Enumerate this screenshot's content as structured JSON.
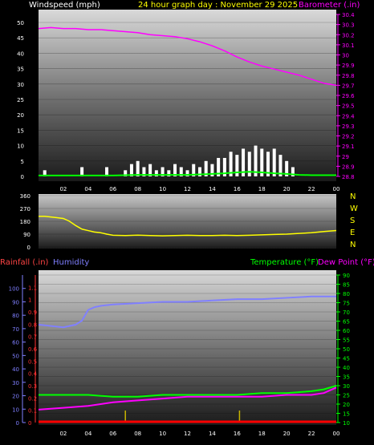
{
  "header": {
    "left_label": "Windspeed (mph)",
    "center_label": "24 hour graph day : November 29 2025",
    "right_label": "Barometer (.in)"
  },
  "colors": {
    "background": "#000000",
    "windspeed_text": "#ffffff",
    "header_center": "#ffff00",
    "barometer": "#ff00ff",
    "wind_gust": "#ffffff",
    "wind_avg": "#00ff00",
    "direction": "#ffff00",
    "humidity": "#7f7fff",
    "temperature": "#00ff00",
    "dew_point": "#ff00ff",
    "rainfall": "#ff0000",
    "rain_marks": "#c8b400"
  },
  "chart_data": [
    {
      "type": "line",
      "name": "wind-and-barometer",
      "x_tick_labels": [
        "02",
        "04",
        "06",
        "08",
        "10",
        "12",
        "14",
        "16",
        "18",
        "20",
        "22",
        "00"
      ],
      "x_range_hours": [
        0,
        24
      ],
      "left_axis": {
        "label": "Windspeed (mph)",
        "range": [
          0,
          50
        ],
        "ticks": [
          "0",
          "5",
          "10",
          "15",
          "20",
          "25",
          "30",
          "35",
          "40",
          "45",
          "50"
        ]
      },
      "right_axis": {
        "label": "Barometer (.in)",
        "range": [
          28.8,
          30.4
        ],
        "ticks": [
          "28.8",
          "28.9",
          "29",
          "29.1",
          "29.2",
          "29.3",
          "29.4",
          "29.5",
          "29.6",
          "29.7",
          "29.8",
          "29.9",
          "30",
          "30.1",
          "30.2",
          "30.3",
          "30.4"
        ]
      },
      "barometer": {
        "x": [
          0,
          1,
          2,
          3,
          4,
          5,
          6,
          7,
          8,
          9,
          10,
          11,
          12,
          13,
          14,
          15,
          16,
          17,
          18,
          19,
          20,
          21,
          22,
          23,
          24
        ],
        "y": [
          30.26,
          30.27,
          30.26,
          30.26,
          30.25,
          30.25,
          30.24,
          30.23,
          30.22,
          30.2,
          30.19,
          30.18,
          30.16,
          30.13,
          30.09,
          30.04,
          29.98,
          29.93,
          29.89,
          29.86,
          29.83,
          29.8,
          29.76,
          29.72,
          29.7
        ]
      },
      "wind_gust": {
        "x": [
          0,
          0.5,
          1,
          1.5,
          2,
          2.5,
          3,
          3.5,
          4,
          4.5,
          5,
          5.5,
          6,
          6.5,
          7,
          7.5,
          8,
          8.5,
          9,
          9.5,
          10,
          10.5,
          11,
          11.5,
          12,
          12.5,
          13,
          13.5,
          14,
          14.5,
          15,
          15.5,
          16,
          16.5,
          17,
          17.5,
          18,
          18.5,
          19,
          19.5,
          20,
          20.5,
          21
        ],
        "y": [
          0,
          2,
          0,
          0,
          0,
          0,
          0,
          3,
          0,
          0,
          0,
          3,
          0,
          0,
          2,
          4,
          5,
          3,
          4,
          2,
          3,
          2,
          4,
          3,
          2,
          4,
          3,
          5,
          4,
          6,
          6,
          8,
          7,
          9,
          8,
          10,
          9,
          8,
          9,
          7,
          5,
          3,
          0
        ]
      },
      "wind_avg": {
        "x": [
          0,
          2,
          4,
          6,
          8,
          10,
          12,
          14,
          15,
          16,
          17,
          18,
          19,
          20,
          21,
          22,
          24
        ],
        "y": [
          0.3,
          0.3,
          0.3,
          0.3,
          0.5,
          0.5,
          0.5,
          0.8,
          1,
          1.3,
          1.5,
          1.3,
          1,
          0.8,
          0.5,
          0.4,
          0.4
        ]
      }
    },
    {
      "type": "line",
      "name": "wind-direction",
      "left_axis": {
        "range": [
          0,
          360
        ],
        "ticks": [
          "0",
          "90",
          "180",
          "270",
          "360"
        ]
      },
      "right_labels": [
        "N",
        "W",
        "S",
        "E",
        "N"
      ],
      "direction": {
        "x": [
          0,
          0.5,
          1,
          1.5,
          2,
          2.5,
          3,
          3.5,
          4,
          4.5,
          5,
          5.5,
          6,
          7,
          8,
          9,
          10,
          11,
          12,
          13,
          14,
          15,
          16,
          17,
          18,
          19,
          20,
          21,
          22,
          23,
          24
        ],
        "y": [
          215,
          215,
          210,
          205,
          200,
          180,
          150,
          125,
          115,
          105,
          100,
          90,
          82,
          80,
          83,
          80,
          78,
          80,
          82,
          80,
          80,
          82,
          80,
          82,
          85,
          88,
          90,
          95,
          100,
          108,
          115
        ]
      }
    },
    {
      "type": "line",
      "name": "humidity-temperature",
      "header_left": "Rainfall (.in)",
      "header_humidity": "Humidity",
      "header_temperature": "Temperature (°F)",
      "header_dewpoint": "Dew Point (°F)",
      "rain_axis": {
        "range": [
          0,
          1.2
        ],
        "ticks": [
          "0",
          "0.1",
          "0.2",
          "0.3",
          "0.4",
          "0.5",
          "0.6",
          "0.7",
          "0.8",
          "0.9",
          "1",
          "1.1"
        ]
      },
      "humidity_axis": {
        "range": [
          0,
          110
        ],
        "ticks": [
          "0",
          "10",
          "20",
          "30",
          "40",
          "50",
          "60",
          "70",
          "80",
          "90",
          "100"
        ]
      },
      "temp_axis": {
        "range": [
          10,
          90
        ],
        "ticks": [
          "10",
          "15",
          "20",
          "25",
          "30",
          "35",
          "40",
          "45",
          "50",
          "55",
          "60",
          "65",
          "70",
          "75",
          "80",
          "85",
          "90"
        ]
      },
      "x_tick_labels": [
        "02",
        "04",
        "06",
        "08",
        "10",
        "12",
        "14",
        "16",
        "18",
        "20",
        "22",
        "00"
      ],
      "humidity": {
        "x": [
          0,
          1,
          2,
          3,
          3.5,
          4,
          4.5,
          5,
          6,
          8,
          10,
          12,
          14,
          16,
          18,
          20,
          22,
          24
        ],
        "y": [
          73,
          72,
          71,
          73,
          76,
          84,
          86,
          87,
          88,
          89,
          90,
          90,
          91,
          92,
          92,
          93,
          94,
          94
        ]
      },
      "temperature": {
        "x": [
          0,
          2,
          4,
          6,
          8,
          10,
          12,
          14,
          16,
          18,
          20,
          22,
          23,
          24
        ],
        "y": [
          25,
          25,
          25,
          24,
          24,
          25,
          25,
          25,
          25,
          26,
          26,
          27,
          28,
          30
        ]
      },
      "dew_point": {
        "x": [
          0,
          2,
          4,
          6,
          8,
          10,
          12,
          14,
          16,
          18,
          20,
          22,
          23,
          24
        ],
        "y": [
          17,
          18,
          19,
          21,
          22,
          23,
          24,
          24,
          24,
          24,
          25,
          25,
          26,
          29
        ]
      },
      "rainfall": {
        "x": [
          0,
          24
        ],
        "y": [
          0,
          0
        ]
      },
      "rain_marks_hours": [
        7,
        16.2
      ]
    }
  ]
}
